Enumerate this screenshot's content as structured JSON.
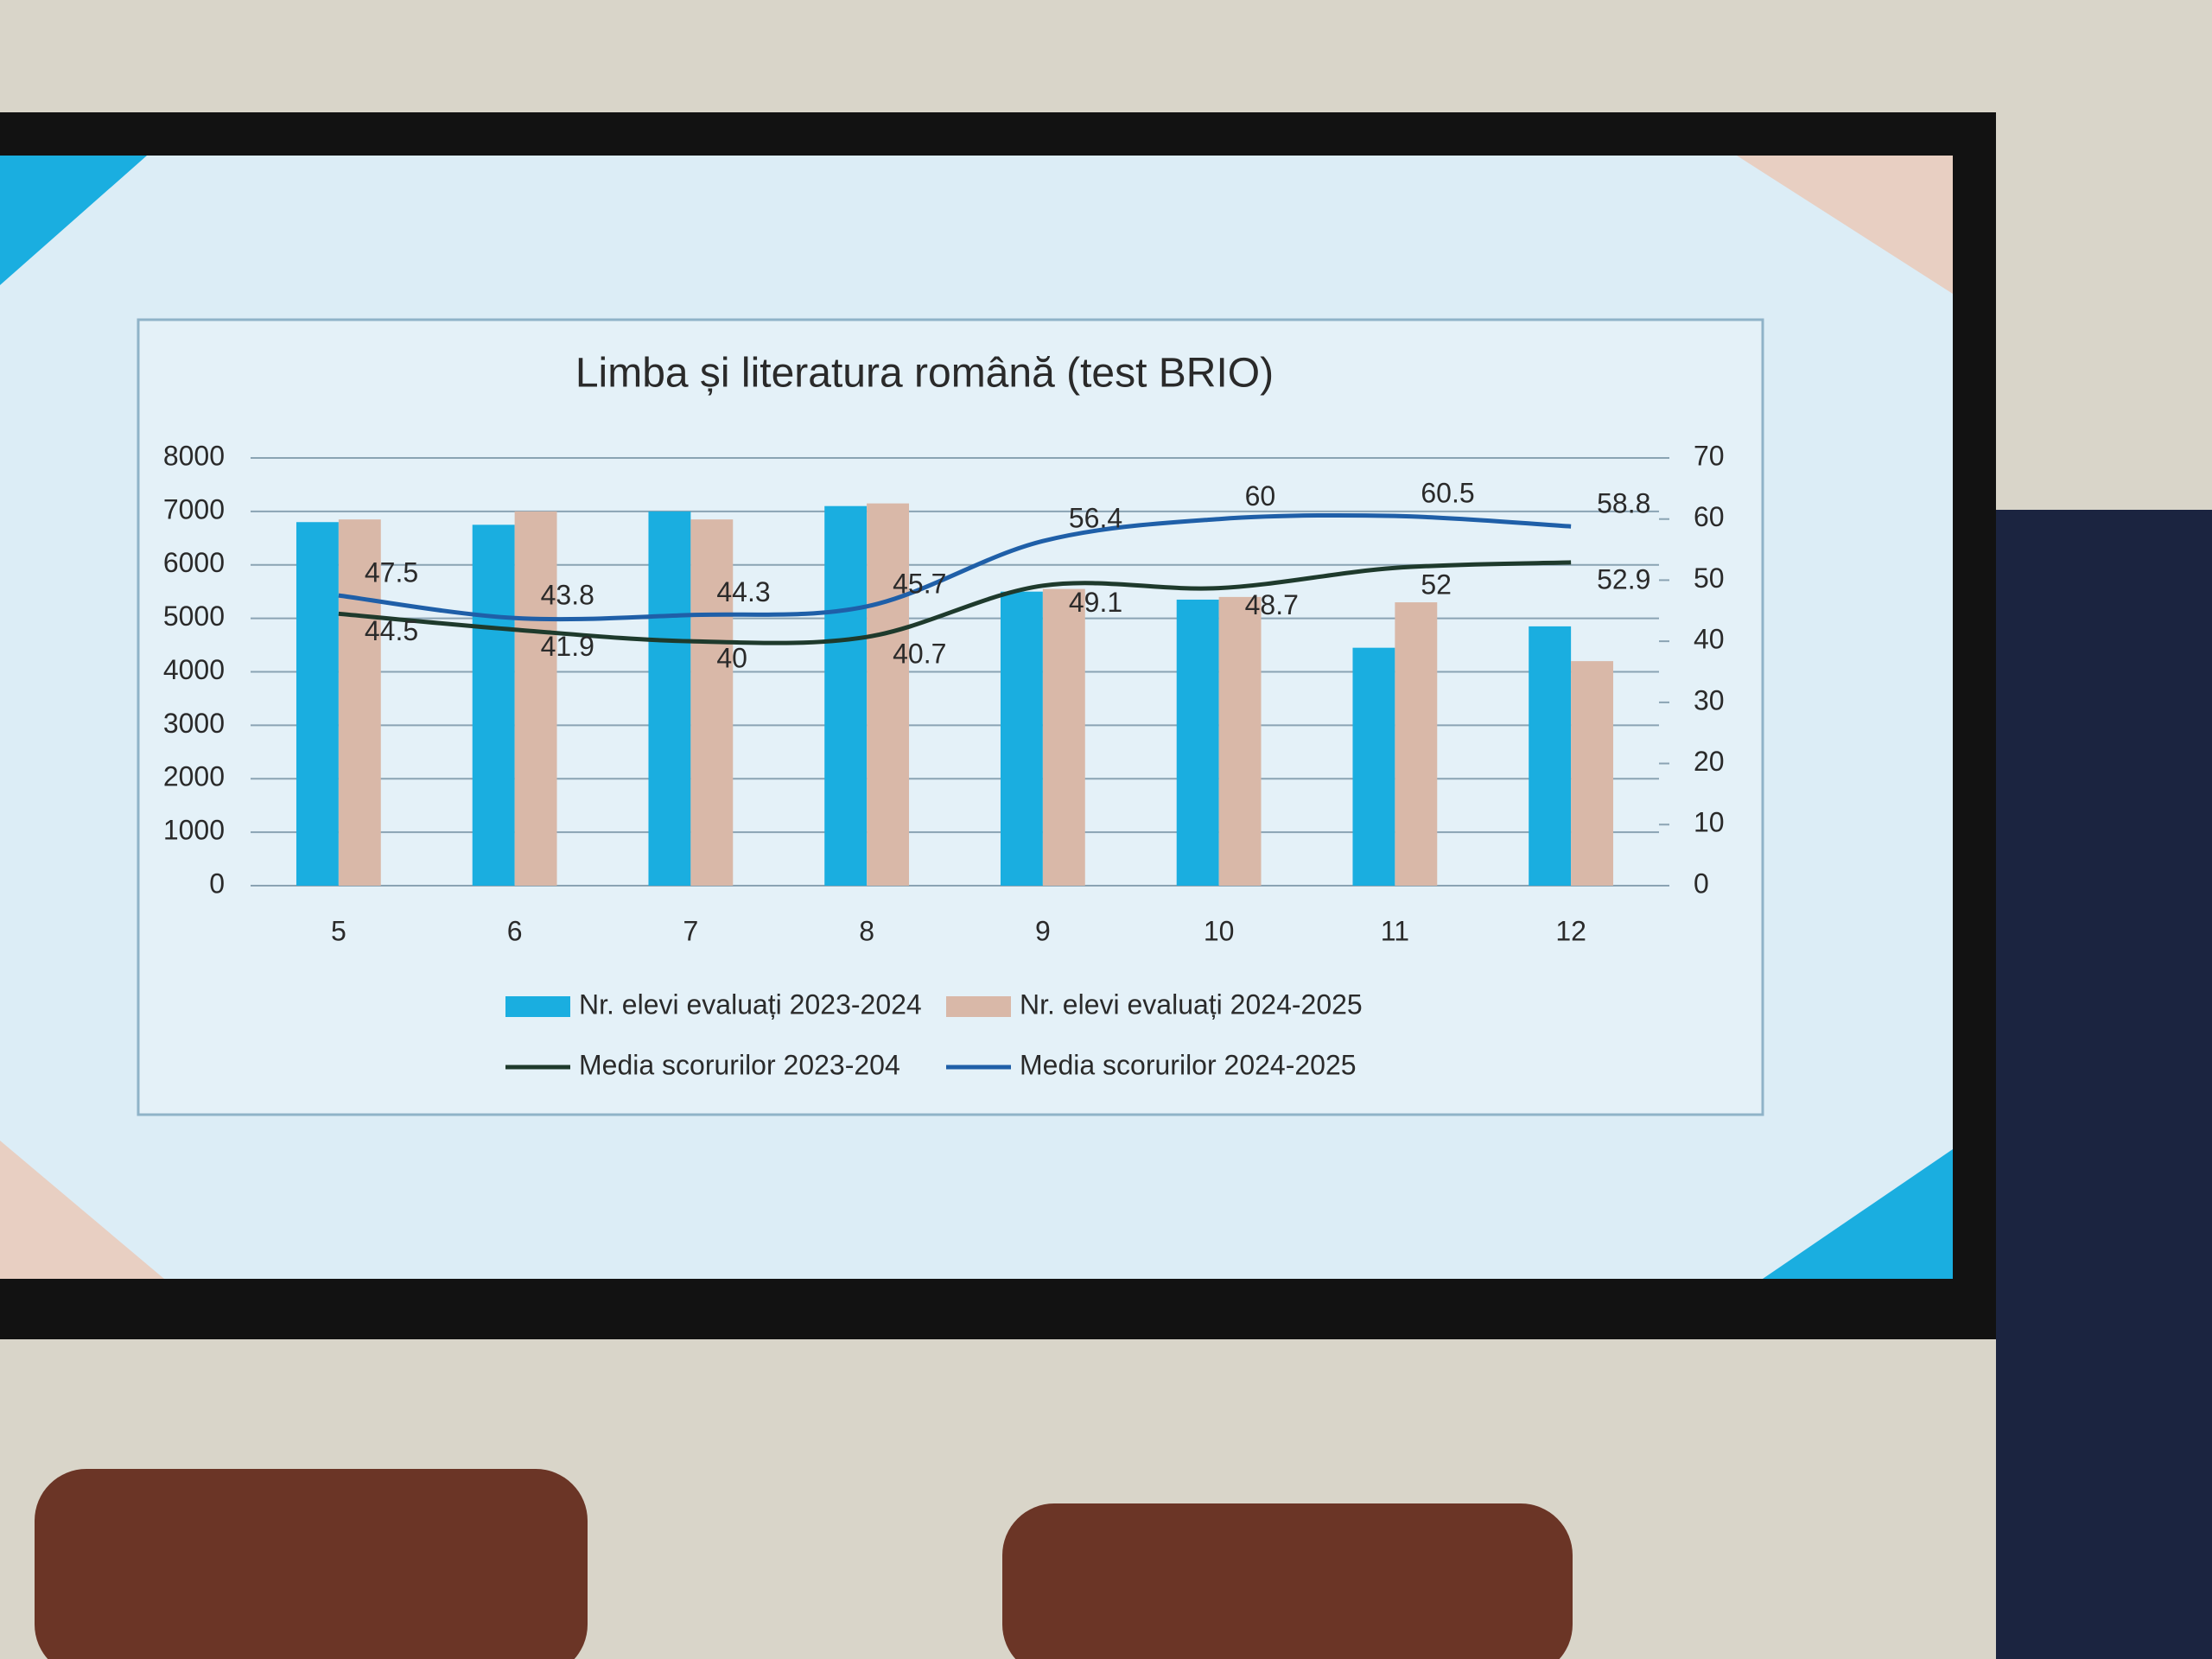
{
  "chart_data": {
    "type": "bar",
    "title": "Limba și literatura română (test BRIO)",
    "categories": [
      "5",
      "6",
      "7",
      "8",
      "9",
      "10",
      "11",
      "12"
    ],
    "series": [
      {
        "name": "Nr. elevi evaluați 2023-2024",
        "type": "bar",
        "color": "#1aaee0",
        "values": [
          6800,
          6750,
          7000,
          7100,
          5500,
          5350,
          4450,
          4850
        ]
      },
      {
        "name": "Nr. elevi evaluați 2024-2025",
        "type": "bar",
        "color": "#d9b8a8",
        "values": [
          6850,
          7000,
          6850,
          7150,
          5550,
          5400,
          5300,
          4200
        ]
      },
      {
        "name": "Media scorurilor 2023-204",
        "type": "line",
        "axis": "y2",
        "color": "#1e3a2c",
        "values": [
          44.5,
          41.9,
          40,
          40.7,
          49.1,
          48.7,
          52,
          52.9
        ]
      },
      {
        "name": "Media scorurilor 2024-2025",
        "type": "line",
        "axis": "y2",
        "color": "#1f5fa8",
        "values": [
          47.5,
          43.8,
          44.3,
          45.7,
          56.4,
          60,
          60.5,
          58.8
        ]
      }
    ],
    "ylim": [
      0,
      8000
    ],
    "yticks": [
      0,
      1000,
      2000,
      3000,
      4000,
      5000,
      6000,
      7000,
      8000
    ],
    "y2lim": [
      0,
      70
    ],
    "y2ticks": [
      0,
      10,
      20,
      30,
      40,
      50,
      60,
      70
    ],
    "grid": true,
    "legend": "bottom"
  }
}
